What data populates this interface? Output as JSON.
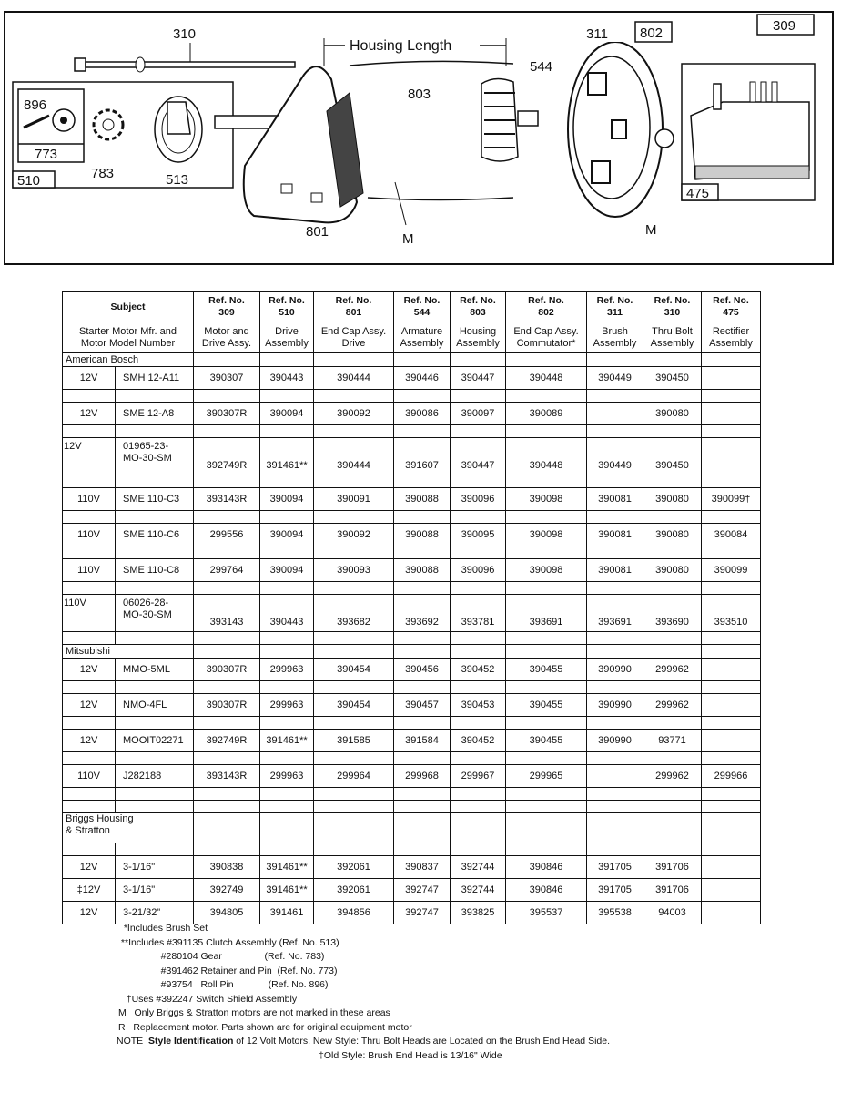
{
  "diagram": {
    "labels": {
      "thru_bolt": "310",
      "housing_length": "Housing Length",
      "armature": "544",
      "brush": "311",
      "end_cap_comm": "802",
      "motor_drive": "309",
      "roll_pin": "896",
      "retainer": "773",
      "drive": "510",
      "gear": "783",
      "clutch": "513",
      "housing": "803",
      "end_cap_drive": "801",
      "mark_m1": "M",
      "mark_m2": "M",
      "rectifier": "475"
    }
  },
  "table": {
    "header_refs": [
      "Subject",
      "Ref. No.\n309",
      "Ref. No.\n510",
      "Ref. No.\n801",
      "Ref. No.\n544",
      "Ref. No.\n803",
      "Ref. No.\n802",
      "Ref. No.\n311",
      "Ref. No.\n310",
      "Ref. No.\n475"
    ],
    "header_names": [
      "Starter Motor Mfr. and\nMotor Model Number",
      "Motor and\nDrive Assy.",
      "Drive\nAssembly",
      "End Cap Assy.\nDrive",
      "Armature\nAssembly",
      "Housing\nAssembly",
      "End Cap Assy.\nCommutator*",
      "Brush\nAssembly",
      "Thru Bolt\nAssembly",
      "Rectifier\nAssembly"
    ],
    "rows": [
      {
        "type": "section",
        "label": "American Bosch"
      },
      {
        "type": "data",
        "cells": [
          "12V",
          "SMH 12-A11",
          "390307",
          "390443",
          "390444",
          "390446",
          "390447",
          "390448",
          "390449",
          "390450",
          ""
        ]
      },
      {
        "type": "blank"
      },
      {
        "type": "data",
        "cells": [
          "12V",
          "SME 12-A8",
          "390307R",
          "390094",
          "390092",
          "390086",
          "390097",
          "390089",
          "",
          "390080",
          ""
        ]
      },
      {
        "type": "blank"
      },
      {
        "type": "tall",
        "cells": [
          "12V",
          "01965-23-\nMO-30-SM",
          "392749R",
          "391461**",
          "390444",
          "391607",
          "390447",
          "390448",
          "390449",
          "390450",
          ""
        ]
      },
      {
        "type": "blank"
      },
      {
        "type": "data",
        "cells": [
          "110V",
          "SME 110-C3",
          "393143R",
          "390094",
          "390091",
          "390088",
          "390096",
          "390098",
          "390081",
          "390080",
          "390099†"
        ]
      },
      {
        "type": "blank"
      },
      {
        "type": "data",
        "cells": [
          "110V",
          "SME 110-C6",
          "299556",
          "390094",
          "390092",
          "390088",
          "390095",
          "390098",
          "390081",
          "390080",
          "390084"
        ]
      },
      {
        "type": "blank"
      },
      {
        "type": "data",
        "cells": [
          "110V",
          "SME 110-C8",
          "299764",
          "390094",
          "390093",
          "390088",
          "390096",
          "390098",
          "390081",
          "390080",
          "390099"
        ]
      },
      {
        "type": "blank"
      },
      {
        "type": "tall",
        "cells": [
          "110V",
          "06026-28-\nMO-30-SM",
          "393143",
          "390443",
          "393682",
          "393692",
          "393781",
          "393691",
          "393691",
          "393690",
          "393510"
        ]
      },
      {
        "type": "blank"
      },
      {
        "type": "section",
        "label": "Mitsubishi"
      },
      {
        "type": "data",
        "cells": [
          "12V",
          "MMO-5ML",
          "390307R",
          "299963",
          "390454",
          "390456",
          "390452",
          "390455",
          "390990",
          "299962",
          ""
        ]
      },
      {
        "type": "blank"
      },
      {
        "type": "data",
        "cells": [
          "12V",
          "NMO-4FL",
          "390307R",
          "299963",
          "390454",
          "390457",
          "390453",
          "390455",
          "390990",
          "299962",
          ""
        ]
      },
      {
        "type": "blank"
      },
      {
        "type": "data",
        "cells": [
          "12V",
          "MOOIT02271",
          "392749R",
          "391461**",
          "391585",
          "391584",
          "390452",
          "390455",
          "390990",
          "93771",
          ""
        ]
      },
      {
        "type": "blank"
      },
      {
        "type": "data",
        "cells": [
          "110V",
          "J282188",
          "393143R",
          "299963",
          "299964",
          "299968",
          "299967",
          "299965",
          "",
          "299962",
          "299966"
        ]
      },
      {
        "type": "blank"
      },
      {
        "type": "blank"
      },
      {
        "type": "sectiontall",
        "label": "Briggs      Housing\n& Stratton"
      },
      {
        "type": "blank"
      },
      {
        "type": "data",
        "cells": [
          "12V",
          "3-1/16\"",
          "390838",
          "391461**",
          "392061",
          "390837",
          "392744",
          "390846",
          "391705",
          "391706",
          ""
        ]
      },
      {
        "type": "data",
        "cells": [
          "‡12V",
          "3-1/16\"",
          "392749",
          "391461**",
          "392061",
          "392747",
          "392744",
          "390846",
          "391705",
          "391706",
          ""
        ]
      },
      {
        "type": "data",
        "cells": [
          "12V",
          "3-21/32\"",
          "394805",
          "391461",
          "394856",
          "392747",
          "393825",
          "395537",
          "395538",
          "94003",
          ""
        ]
      }
    ]
  },
  "notes": [
    "  *Includes Brush Set",
    " **Includes #391135 Clutch Assembly (Ref. No. 513)",
    "                #280104 Gear                (Ref. No. 783)",
    "                #391462 Retainer and Pin  (Ref. No. 773)",
    "                #93754   Roll Pin             (Ref. No. 896)",
    "   †Uses #392247 Switch Shield Assembly",
    "M   Only Briggs & Stratton motors are not marked in these areas",
    "R   Replacement motor. Parts shown are for original equipment motor"
  ],
  "note_label": "NOTE",
  "note_bold": "Style Identification",
  "note_text": " of 12 Volt Motors. New Style: Thru Bolt Heads are Located on the Brush End Head Side.",
  "note_line2": "‡Old Style: Brush End Head is 13/16\" Wide"
}
